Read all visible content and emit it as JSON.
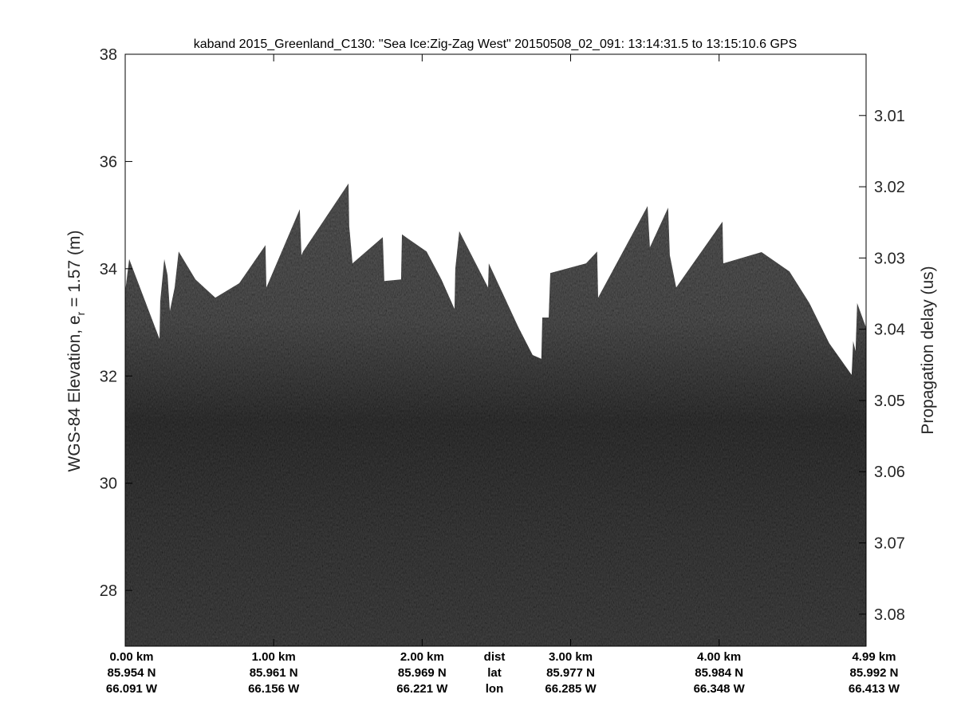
{
  "chart_data": {
    "type": "heatmap",
    "title": "kaband 2015_Greenland_C130: \"Sea Ice:Zig-Zag West\"  20150508_02_091: 13:14:31.5 to 13:15:10.6 GPS",
    "ylabel": "WGS-84 Elevation, e",
    "ylabel_sub": "r",
    "ylabel_tail": " = 1.57 (m)",
    "y2label": "Propagation delay (us)",
    "ylim": [
      26.96,
      38
    ],
    "y2lim": [
      3.0014,
      3.0845
    ],
    "xlim_km": [
      0,
      4.99
    ],
    "yticks": [
      "28",
      "30",
      "32",
      "34",
      "36",
      "38"
    ],
    "y2ticks": [
      "3.01",
      "3.02",
      "3.03",
      "3.04",
      "3.05",
      "3.06",
      "3.07",
      "3.08"
    ],
    "xticks_km": [
      0,
      1,
      2,
      3,
      4,
      4.99
    ],
    "bottom_rows": {
      "dist": [
        "0.00 km",
        "1.00 km",
        "2.00 km",
        "3.00 km",
        "4.00 km",
        "4.99 km"
      ],
      "lat": [
        "85.954 N",
        "85.961 N",
        "85.969 N",
        "85.977 N",
        "85.984 N",
        "85.992 N"
      ],
      "lon": [
        "66.091 W",
        "66.156 W",
        "66.221 W",
        "66.285 W",
        "66.348 W",
        "66.413 W"
      ]
    },
    "row_labels": {
      "dist": "dist",
      "lat": "lat",
      "lon": "lon"
    },
    "colormap": "gray",
    "surface_top_km_elev": [
      [
        0,
        33.58
      ],
      [
        0.027,
        34.18
      ],
      [
        0.231,
        32.69
      ],
      [
        0.236,
        33.39
      ],
      [
        0.263,
        34.18
      ],
      [
        0.285,
        33.88
      ],
      [
        0.301,
        33.21
      ],
      [
        0.333,
        33.65
      ],
      [
        0.36,
        34.32
      ],
      [
        0.473,
        33.8
      ],
      [
        0.607,
        33.46
      ],
      [
        0.768,
        33.73
      ],
      [
        0.945,
        34.44
      ],
      [
        0.951,
        33.65
      ],
      [
        1.176,
        35.11
      ],
      [
        1.187,
        34.25
      ],
      [
        1.198,
        34.32
      ],
      [
        1.504,
        35.59
      ],
      [
        1.509,
        34.8
      ],
      [
        1.531,
        34.1
      ],
      [
        1.735,
        34.59
      ],
      [
        1.745,
        33.77
      ],
      [
        1.858,
        33.8
      ],
      [
        1.864,
        34.64
      ],
      [
        2.03,
        34.32
      ],
      [
        2.13,
        33.8
      ],
      [
        2.218,
        33.25
      ],
      [
        2.223,
        34.0
      ],
      [
        2.25,
        34.7
      ],
      [
        2.444,
        33.65
      ],
      [
        2.449,
        34.1
      ],
      [
        2.648,
        32.91
      ],
      [
        2.744,
        32.39
      ],
      [
        2.803,
        32.32
      ],
      [
        2.809,
        33.09
      ],
      [
        2.852,
        33.09
      ],
      [
        2.863,
        33.92
      ],
      [
        3.104,
        34.1
      ],
      [
        3.179,
        34.32
      ],
      [
        3.185,
        33.46
      ],
      [
        3.518,
        35.17
      ],
      [
        3.534,
        34.4
      ],
      [
        3.657,
        35.14
      ],
      [
        3.668,
        34.25
      ],
      [
        3.711,
        33.65
      ],
      [
        4.023,
        34.88
      ],
      [
        4.028,
        34.1
      ],
      [
        4.286,
        34.31
      ],
      [
        4.474,
        33.95
      ],
      [
        4.608,
        33.36
      ],
      [
        4.742,
        32.61
      ],
      [
        4.893,
        32.02
      ],
      [
        4.903,
        32.65
      ],
      [
        4.919,
        32.46
      ],
      [
        4.93,
        33.36
      ],
      [
        4.99,
        32.9
      ]
    ]
  }
}
